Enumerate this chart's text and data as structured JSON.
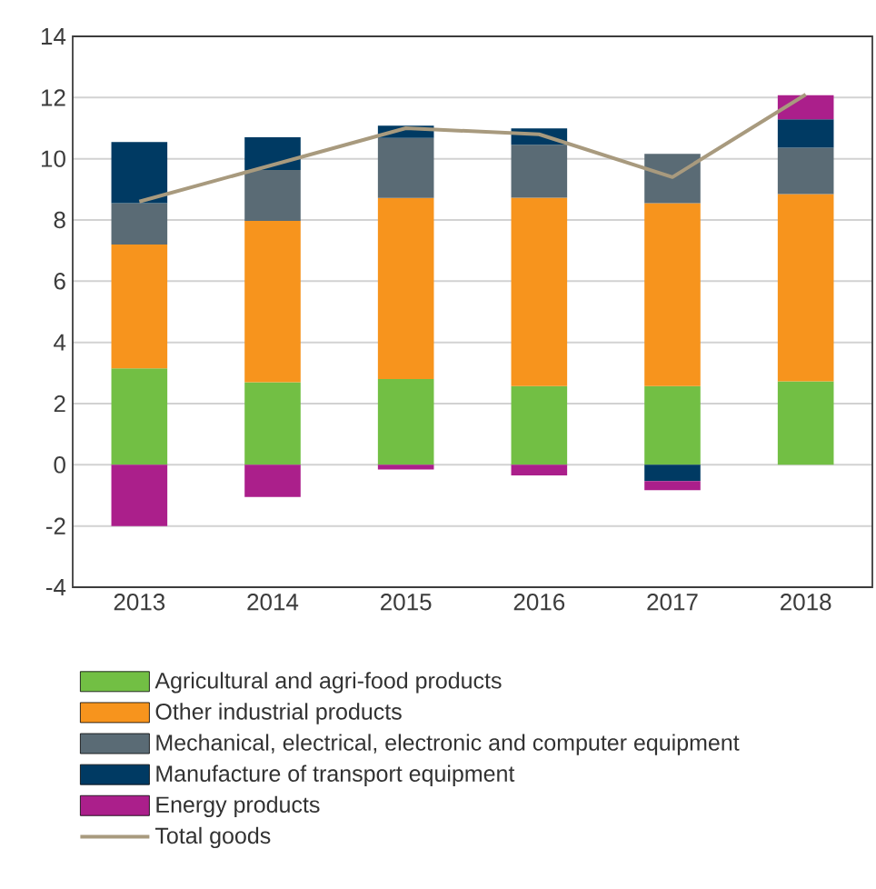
{
  "chart_data": {
    "type": "bar",
    "stacked": true,
    "categories": [
      "2013",
      "2014",
      "2015",
      "2016",
      "2017",
      "2018"
    ],
    "series": [
      {
        "name": "Agricultural and agri-food products",
        "color": "#72bf44",
        "values": [
          3.15,
          2.7,
          2.8,
          2.57,
          2.57,
          2.73
        ]
      },
      {
        "name": "Other industrial products",
        "color": "#f7941d",
        "values": [
          4.05,
          5.27,
          5.92,
          6.16,
          5.98,
          6.12
        ]
      },
      {
        "name": "Mechanical, electrical, electronic and computer equipment",
        "color": "#5a6b75",
        "values": [
          1.35,
          1.66,
          1.96,
          1.73,
          1.61,
          1.51
        ]
      },
      {
        "name": "Manufacture of transport equipment",
        "color": "#003a63",
        "values": [
          2.0,
          1.07,
          0.4,
          0.53,
          -0.53,
          0.93
        ]
      },
      {
        "name": "Energy products",
        "color": "#ab1f8b",
        "values": [
          -2.0,
          -1.05,
          -0.15,
          -0.35,
          -0.3,
          0.79
        ]
      },
      {
        "name": "Total goods",
        "type": "line",
        "color": "#a89a7e",
        "values": [
          8.6,
          9.8,
          11.0,
          10.8,
          9.4,
          12.1
        ]
      }
    ],
    "ylim": [
      -4,
      14
    ],
    "yticks": [
      -4,
      -2,
      0,
      2,
      4,
      6,
      8,
      10,
      12,
      14
    ],
    "grid": "y",
    "legend": "bottom",
    "marker": "none",
    "line_style": "solid"
  }
}
